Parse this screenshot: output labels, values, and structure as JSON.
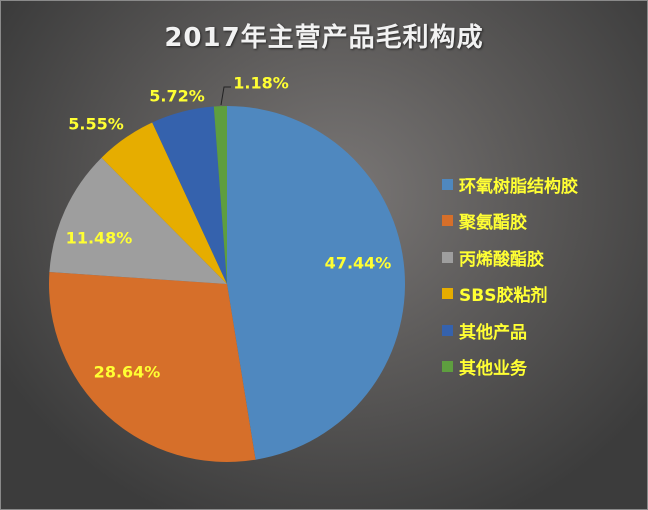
{
  "chart_data": {
    "type": "pie",
    "title": "2017年主营产品毛利构成",
    "categories": [
      "环氧树脂结构胶",
      "聚氨酯胶",
      "丙烯酸酯胶",
      "SBS胶粘剂",
      "其他产品",
      "其他业务"
    ],
    "values": [
      47.44,
      28.64,
      11.48,
      5.55,
      5.72,
      1.18
    ],
    "labels": [
      "47.44%",
      "28.64%",
      "11.48%",
      "5.55%",
      "5.72%",
      "1.18%"
    ],
    "colors": [
      "#4f88bf",
      "#d66f2a",
      "#9e9e9e",
      "#e6ad00",
      "#3562ad",
      "#5e9e3f"
    ],
    "legend_position": "right",
    "start_angle": "12 o'clock, clockwise"
  },
  "title": "2017年主营产品毛利构成",
  "legend": [
    {
      "label": "环氧树脂结构胶",
      "color": "#4f88bf"
    },
    {
      "label": "聚氨酯胶",
      "color": "#d66f2a"
    },
    {
      "label": "丙烯酸酯胶",
      "color": "#9e9e9e"
    },
    {
      "label": "SBS胶粘剂",
      "color": "#e6ad00"
    },
    {
      "label": "其他产品",
      "color": "#3562ad"
    },
    {
      "label": "其他业务",
      "color": "#5e9e3f"
    }
  ],
  "data_labels": {
    "epoxy": "47.44%",
    "pu": "28.64%",
    "acrylic": "11.48%",
    "sbs": "5.55%",
    "other_products": "5.72%",
    "other_business": "1.18%"
  },
  "colors": {
    "label_text": "#ffff33",
    "title_text": "#f2f2f2"
  }
}
